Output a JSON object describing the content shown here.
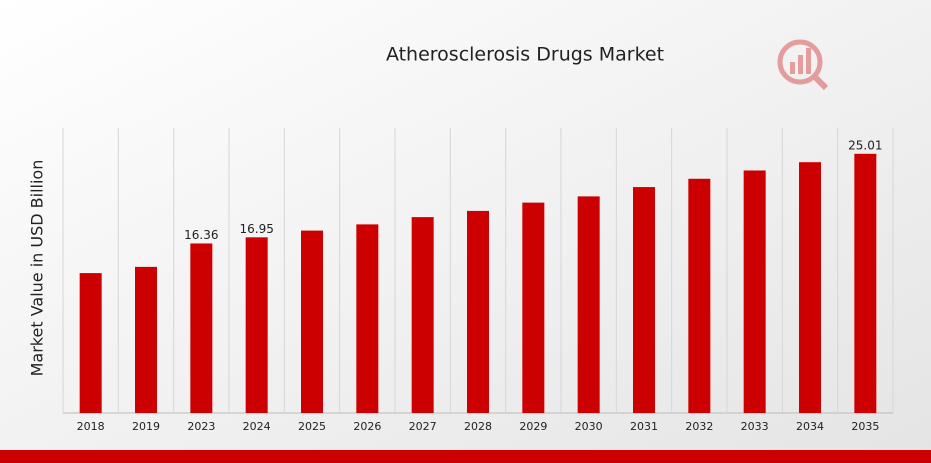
{
  "chart_data": {
    "type": "bar",
    "title": "Atherosclerosis Drugs Market",
    "y_label": "Market Value in USD Billion",
    "categories": [
      "2018",
      "2019",
      "2023",
      "2024",
      "2025",
      "2026",
      "2027",
      "2028",
      "2029",
      "2030",
      "2031",
      "2032",
      "2033",
      "2034",
      "2035"
    ],
    "values": [
      13.5,
      14.1,
      16.36,
      16.95,
      17.6,
      18.2,
      18.9,
      19.5,
      20.3,
      20.9,
      21.8,
      22.6,
      23.4,
      24.2,
      25.01
    ],
    "value_labels": [
      null,
      null,
      "16.36",
      "16.95",
      null,
      null,
      null,
      null,
      null,
      null,
      null,
      null,
      null,
      null,
      "25.01"
    ],
    "color": "#cc0000",
    "ylim": [
      0,
      27.5
    ],
    "grid": true
  }
}
